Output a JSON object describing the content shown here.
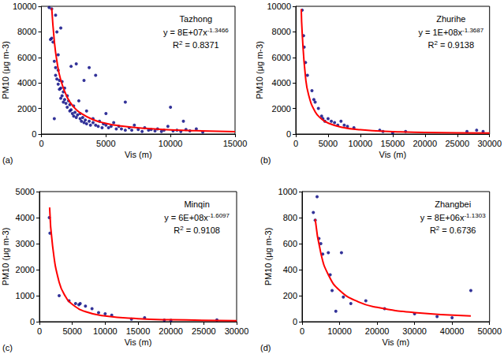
{
  "chart_data": [
    {
      "type": "scatter",
      "title": "Tazhong",
      "panel_label": "(a)",
      "equation": {
        "base": "y = 8E+07x",
        "exponent": "-1.3466"
      },
      "r_squared": {
        "base": "R",
        "exponent": "2",
        "rest": " = 0.8371"
      },
      "x_label": "Vis (m)",
      "y_label": "PM10 (μg m-3)",
      "xlim": [
        0,
        15000
      ],
      "xticks": [
        0,
        5000,
        10000,
        15000
      ],
      "ylim": [
        0,
        10000
      ],
      "yticks": [
        0,
        2000,
        4000,
        6000,
        8000,
        10000
      ],
      "grid": false,
      "series": [
        {
          "type": "scatter",
          "color": "#000080",
          "marker": "circle",
          "x": [
            600,
            700,
            800,
            800,
            900,
            1000,
            1000,
            1100,
            1100,
            1100,
            1200,
            1200,
            1300,
            1300,
            1300,
            1400,
            1400,
            1500,
            1500,
            1500,
            1600,
            1600,
            1700,
            1700,
            1800,
            1800,
            1900,
            2000,
            2000,
            2100,
            2200,
            2200,
            2300,
            2300,
            2400,
            2500,
            2500,
            2600,
            2700,
            2700,
            2800,
            2900,
            3000,
            3000,
            3100,
            3200,
            3300,
            3300,
            3400,
            3500,
            3500,
            3700,
            3700,
            3800,
            4000,
            4000,
            4200,
            4200,
            4400,
            4500,
            4700,
            4800,
            5000,
            5000,
            5200,
            5400,
            5600,
            5800,
            6000,
            6200,
            6500,
            6500,
            6800,
            7000,
            7200,
            7500,
            7800,
            8000,
            8300,
            8500,
            8800,
            9000,
            9300,
            9500,
            9800,
            10000,
            10200,
            10500,
            10800,
            11000,
            11200,
            11500,
            12000,
            12500
          ],
          "values": [
            9900,
            7400,
            7500,
            9800,
            7200,
            1200,
            5700,
            9300,
            5200,
            4600,
            8000,
            4300,
            6200,
            5000,
            3900,
            4200,
            3500,
            8300,
            3600,
            2800,
            4100,
            3000,
            3300,
            2500,
            2700,
            3600,
            2400,
            3000,
            2100,
            2600,
            1800,
            2300,
            5300,
            1900,
            1600,
            2200,
            1400,
            1700,
            5500,
            1300,
            1500,
            2600,
            1200,
            1600,
            1000,
            1300,
            4200,
            900,
            1100,
            1800,
            800,
            5200,
            1000,
            700,
            900,
            1200,
            4600,
            700,
            600,
            1000,
            500,
            800,
            700,
            1600,
            500,
            600,
            900,
            400,
            600,
            400,
            2500,
            300,
            500,
            300,
            700,
            350,
            200,
            500,
            300,
            350,
            250,
            400,
            200,
            300,
            600,
            2100,
            250,
            300,
            200,
            1000,
            350,
            250,
            400,
            150
          ]
        },
        {
          "type": "line",
          "color": "#ff0000",
          "line_style": "solid",
          "x": [
            800,
            1000,
            1200,
            1500,
            2000,
            2500,
            3000,
            4000,
            5000,
            6000,
            8000,
            10000,
            12000,
            15000
          ],
          "values": [
            9860,
            7296,
            5710,
            4230,
            2871,
            2125,
            1663,
            1128,
            836,
            654,
            444,
            329,
            257,
            190
          ]
        }
      ]
    },
    {
      "type": "scatter",
      "title": "Zhurihe",
      "panel_label": "(b)",
      "equation": {
        "base": "y = 1E+08x",
        "exponent": "-1.3687"
      },
      "r_squared": {
        "base": "R",
        "exponent": "2",
        "rest": " = 0.9138"
      },
      "x_label": "Vis (m)",
      "y_label": "PM10 (μg m-3)",
      "xlim": [
        0,
        30000
      ],
      "xticks": [
        0,
        5000,
        10000,
        15000,
        20000,
        25000,
        30000
      ],
      "ylim": [
        0,
        10000
      ],
      "yticks": [
        0,
        2000,
        4000,
        6000,
        8000,
        10000
      ],
      "grid": false,
      "series": [
        {
          "type": "scatter",
          "color": "#000080",
          "marker": "circle",
          "x": [
            1000,
            1200,
            1300,
            1500,
            1800,
            2500,
            2800,
            3000,
            3500,
            4000,
            4200,
            4500,
            5000,
            5500,
            6000,
            6500,
            7000,
            7500,
            8000,
            9000,
            13000,
            13500,
            15000,
            17000,
            26500,
            28000,
            29000
          ],
          "values": [
            9700,
            7700,
            6800,
            5600,
            4600,
            3400,
            2700,
            2500,
            2000,
            1400,
            1200,
            1000,
            1200,
            1000,
            900,
            700,
            1000,
            700,
            600,
            500,
            300,
            200,
            100,
            200,
            200,
            300,
            200
          ]
        },
        {
          "type": "line",
          "color": "#ff0000",
          "line_style": "solid",
          "x": [
            850,
            1000,
            1500,
            2000,
            3000,
            4000,
            5000,
            7000,
            10000,
            15000,
            20000,
            25000,
            30000
          ],
          "values": [
            9790,
            7830,
            4500,
            3034,
            1742,
            1175,
            865,
            546,
            335,
            192,
            130,
            96,
            74
          ]
        }
      ]
    },
    {
      "type": "scatter",
      "title": "Minqin",
      "panel_label": "(c)",
      "equation": {
        "base": "y = 6E+08x",
        "exponent": "-1.6097"
      },
      "r_squared": {
        "base": "R",
        "exponent": "2",
        "rest": " = 0.9108"
      },
      "x_label": "Vis (m)",
      "y_label": "PM10 (μg m-3)",
      "xlim": [
        0,
        30000
      ],
      "xticks": [
        0,
        5000,
        10000,
        15000,
        20000,
        25000,
        30000
      ],
      "ylim": [
        0,
        5000
      ],
      "yticks": [
        0,
        1000,
        2000,
        3000,
        4000,
        5000
      ],
      "grid": false,
      "series": [
        {
          "type": "scatter",
          "color": "#000080",
          "marker": "circle",
          "x": [
            1500,
            1600,
            3000,
            4500,
            5500,
            6000,
            6200,
            7000,
            8000,
            9000,
            10000,
            11000,
            14000,
            16000,
            19000,
            20000,
            27000
          ],
          "values": [
            4000,
            3400,
            1000,
            800,
            700,
            650,
            700,
            600,
            500,
            350,
            300,
            250,
            100,
            150,
            60,
            50,
            70
          ]
        },
        {
          "type": "line",
          "color": "#ff0000",
          "line_style": "solid",
          "x": [
            1550,
            2000,
            3000,
            4000,
            5000,
            7000,
            10000,
            15000,
            20000,
            30000
          ],
          "values": [
            4390,
            2913,
            1517,
            955,
            667,
            387,
            218,
            114,
            72,
            37
          ]
        }
      ]
    },
    {
      "type": "scatter",
      "title": "Zhangbei",
      "panel_label": "(d)",
      "equation": {
        "base": "y = 8E+06x",
        "exponent": "-1.1303"
      },
      "r_squared": {
        "base": "R",
        "exponent": "2",
        "rest": " = 0.6736"
      },
      "x_label": "Vis (m)",
      "y_label": "PM10 (μg m-3)",
      "xlim": [
        0,
        50000
      ],
      "xticks": [
        0,
        10000,
        20000,
        30000,
        40000,
        50000
      ],
      "ylim": [
        0,
        1000
      ],
      "yticks": [
        0,
        200,
        400,
        600,
        800,
        1000
      ],
      "grid": false,
      "series": [
        {
          "type": "scatter",
          "color": "#000080",
          "marker": "circle",
          "x": [
            3000,
            3500,
            4000,
            4500,
            5000,
            5500,
            7000,
            7500,
            8000,
            9000,
            10500,
            11000,
            13000,
            17000,
            22000,
            30000,
            36000,
            40000,
            45000
          ],
          "values": [
            840,
            780,
            960,
            640,
            600,
            520,
            530,
            360,
            240,
            80,
            530,
            190,
            140,
            160,
            100,
            60,
            40,
            30,
            240
          ]
        },
        {
          "type": "line",
          "color": "#ff0000",
          "line_style": "solid",
          "x": [
            3500,
            5000,
            7000,
            10000,
            15000,
            20000,
            30000,
            45000
          ],
          "values": [
            789,
            527,
            361,
            241,
            152,
            110,
            70,
            44
          ]
        }
      ]
    }
  ]
}
